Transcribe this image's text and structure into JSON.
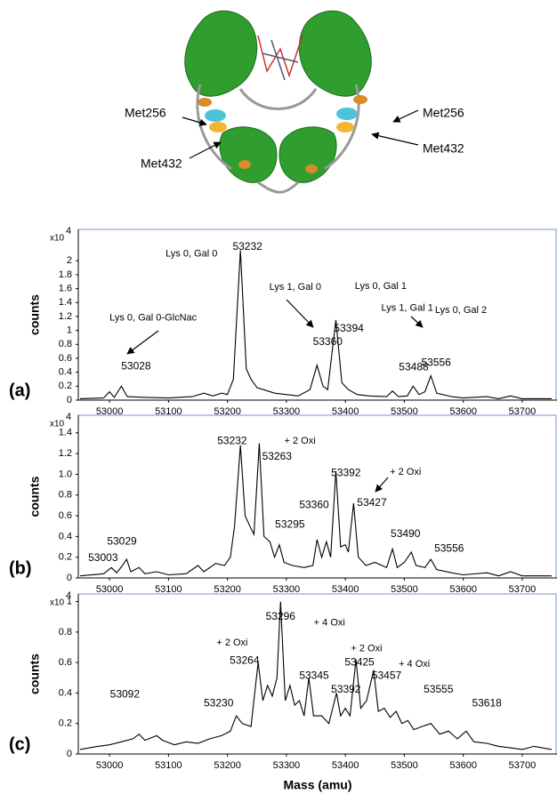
{
  "structure": {
    "labels": [
      "Met256",
      "Met432",
      "Met256",
      "Met432"
    ]
  },
  "chart_data": [
    {
      "type": "line",
      "panel": "(a)",
      "ylabel": "counts",
      "y_multiplier": "x10",
      "y_multiplier_exponent": "4",
      "color": "#000000",
      "xlim": [
        52947,
        53759
      ],
      "xticks": [
        53000,
        53100,
        53200,
        53300,
        53400,
        53500,
        53600,
        53700
      ],
      "ylim": [
        0,
        2.45
      ],
      "yticks": [
        0,
        0.2,
        0.4,
        0.6,
        0.8,
        1,
        1.2,
        1.4,
        1.6,
        1.8,
        2
      ],
      "x": [
        52950,
        52990,
        53000,
        53008,
        53020,
        53030,
        53060,
        53100,
        53140,
        53160,
        53175,
        53190,
        53200,
        53210,
        53222,
        53232,
        53240,
        53250,
        53280,
        53320,
        53340,
        53352,
        53362,
        53370,
        53384,
        53394,
        53405,
        53420,
        53440,
        53470,
        53480,
        53490,
        53505,
        53515,
        53525,
        53535,
        53545,
        53555,
        53580,
        53600,
        53640,
        53660,
        53680,
        53700,
        53750
      ],
      "values": [
        0.02,
        0.03,
        0.12,
        0.04,
        0.2,
        0.05,
        0.04,
        0.03,
        0.05,
        0.1,
        0.06,
        0.1,
        0.08,
        0.3,
        2.15,
        0.45,
        0.3,
        0.18,
        0.1,
        0.06,
        0.15,
        0.5,
        0.2,
        0.15,
        1.15,
        0.25,
        0.15,
        0.08,
        0.06,
        0.05,
        0.13,
        0.05,
        0.06,
        0.2,
        0.08,
        0.12,
        0.35,
        0.1,
        0.05,
        0.03,
        0.05,
        0.02,
        0.06,
        0.02,
        0.02
      ],
      "annotations": [
        {
          "text": "53232",
          "x": 53234,
          "y": 2.2
        },
        {
          "text": "Lys 0, Gal 0",
          "x": 53139,
          "y": 2.1
        },
        {
          "text": "Lys 1, Gal 0",
          "x": 53315,
          "y": 1.62
        },
        {
          "text": "Lys 0, Gal 1",
          "x": 53460,
          "y": 1.63
        },
        {
          "text": "53394",
          "x": 53406,
          "y": 1.02
        },
        {
          "text": "Lys 0, Gal 0-GlcNac",
          "x": 53074,
          "y": 1.18
        },
        {
          "text": "53360",
          "x": 53370,
          "y": 0.83
        },
        {
          "text": "Lys 1, Gal 1",
          "x": 53505,
          "y": 1.32
        },
        {
          "text": "Lys 0, Gal 2",
          "x": 53596,
          "y": 1.29
        },
        {
          "text": "53028",
          "x": 53045,
          "y": 0.48
        },
        {
          "text": "53488",
          "x": 53516,
          "y": 0.47
        },
        {
          "text": "53556",
          "x": 53554,
          "y": 0.53
        }
      ]
    },
    {
      "type": "line",
      "panel": "(b)",
      "ylabel": "counts",
      "y_multiplier": "x10",
      "y_multiplier_exponent": "4",
      "color": "#000000",
      "xlim": [
        52947,
        53759
      ],
      "xticks": [
        53000,
        53100,
        53200,
        53300,
        53400,
        53500,
        53600,
        53700
      ],
      "ylim": [
        0,
        1.57
      ],
      "yticks": [
        0,
        0.2,
        0.4,
        0.6,
        0.8,
        {
          "value": 1,
          "label": "1.0"
        },
        1.2,
        1.4
      ],
      "x": [
        52950,
        52990,
        53003,
        53012,
        53022,
        53029,
        53036,
        53050,
        53060,
        53080,
        53100,
        53130,
        53150,
        53160,
        53180,
        53195,
        53205,
        53212,
        53222,
        53230,
        53238,
        53245,
        53254,
        53262,
        53272,
        53280,
        53288,
        53296,
        53310,
        53330,
        53345,
        53352,
        53360,
        53368,
        53375,
        53384,
        53392,
        53400,
        53405,
        53414,
        53422,
        53435,
        53450,
        53470,
        53480,
        53488,
        53500,
        53512,
        53520,
        53535,
        53545,
        53555,
        53580,
        53600,
        53640,
        53660,
        53680,
        53700,
        53750
      ],
      "values": [
        0.02,
        0.04,
        0.1,
        0.05,
        0.12,
        0.18,
        0.06,
        0.1,
        0.04,
        0.06,
        0.03,
        0.04,
        0.12,
        0.06,
        0.14,
        0.12,
        0.2,
        0.5,
        1.28,
        0.6,
        0.5,
        0.42,
        1.3,
        0.4,
        0.35,
        0.2,
        0.32,
        0.15,
        0.12,
        0.1,
        0.12,
        0.37,
        0.2,
        0.35,
        0.2,
        1.03,
        0.3,
        0.32,
        0.25,
        0.72,
        0.2,
        0.12,
        0.15,
        0.1,
        0.28,
        0.1,
        0.15,
        0.25,
        0.12,
        0.1,
        0.18,
        0.08,
        0.05,
        0.03,
        0.05,
        0.02,
        0.06,
        0.02,
        0.02
      ],
      "annotations": [
        {
          "text": "53232",
          "x": 53208,
          "y": 1.32
        },
        {
          "text": "+ 2 Oxi",
          "x": 53323,
          "y": 1.32
        },
        {
          "text": "53263",
          "x": 53284,
          "y": 1.17
        },
        {
          "text": "53392",
          "x": 53401,
          "y": 1.01
        },
        {
          "text": "+ 2 Oxi",
          "x": 53502,
          "y": 1.02
        },
        {
          "text": "53360",
          "x": 53347,
          "y": 0.7
        },
        {
          "text": "53427",
          "x": 53445,
          "y": 0.72
        },
        {
          "text": "53295",
          "x": 53306,
          "y": 0.51
        },
        {
          "text": "53490",
          "x": 53502,
          "y": 0.42
        },
        {
          "text": "53029",
          "x": 53021,
          "y": 0.35
        },
        {
          "text": "53556",
          "x": 53576,
          "y": 0.28
        },
        {
          "text": "53003",
          "x": 52989,
          "y": 0.19
        }
      ]
    },
    {
      "type": "line",
      "panel": "(c)",
      "ylabel": "counts",
      "xlabel": "Mass (amu)",
      "y_multiplier": "x10",
      "y_multiplier_exponent": "4",
      "color": "#000000",
      "xlim": [
        52947,
        53759
      ],
      "xticks": [
        53000,
        53100,
        53200,
        53300,
        53400,
        53500,
        53600,
        53700
      ],
      "ylim": [
        0,
        1.05
      ],
      "yticks": [
        0,
        0.2,
        0.4,
        0.6,
        0.8,
        1
      ],
      "x": [
        52950,
        52980,
        53000,
        53020,
        53040,
        53050,
        53060,
        53080,
        53090,
        53110,
        53130,
        53150,
        53170,
        53190,
        53205,
        53215,
        53225,
        53240,
        53252,
        53260,
        53268,
        53276,
        53284,
        53290,
        53298,
        53306,
        53314,
        53322,
        53330,
        53338,
        53346,
        53360,
        53372,
        53385,
        53392,
        53400,
        53408,
        53418,
        53426,
        53436,
        53448,
        53456,
        53466,
        53476,
        53486,
        53496,
        53506,
        53516,
        53530,
        53545,
        53560,
        53575,
        53590,
        53605,
        53618,
        53640,
        53660,
        53680,
        53700,
        53720,
        53750
      ],
      "values": [
        0.03,
        0.05,
        0.06,
        0.08,
        0.1,
        0.13,
        0.09,
        0.12,
        0.09,
        0.06,
        0.08,
        0.07,
        0.1,
        0.12,
        0.15,
        0.25,
        0.2,
        0.18,
        0.6,
        0.35,
        0.45,
        0.38,
        0.5,
        1.0,
        0.35,
        0.45,
        0.32,
        0.35,
        0.25,
        0.5,
        0.25,
        0.25,
        0.2,
        0.4,
        0.25,
        0.3,
        0.25,
        0.62,
        0.3,
        0.35,
        0.55,
        0.28,
        0.3,
        0.24,
        0.28,
        0.2,
        0.22,
        0.16,
        0.18,
        0.2,
        0.13,
        0.15,
        0.1,
        0.15,
        0.08,
        0.07,
        0.05,
        0.04,
        0.03,
        0.05,
        0.03
      ],
      "annotations": [
        {
          "text": "53296",
          "x": 53290,
          "y": 0.9
        },
        {
          "text": "+ 4 Oxi",
          "x": 53373,
          "y": 0.86
        },
        {
          "text": "+ 2 Oxi",
          "x": 53208,
          "y": 0.73
        },
        {
          "text": "+ 2 Oxi",
          "x": 53436,
          "y": 0.69
        },
        {
          "text": "53425",
          "x": 53424,
          "y": 0.6
        },
        {
          "text": "+ 4 Oxi",
          "x": 53517,
          "y": 0.59
        },
        {
          "text": "53264",
          "x": 53229,
          "y": 0.61
        },
        {
          "text": "53345",
          "x": 53347,
          "y": 0.51
        },
        {
          "text": "53392",
          "x": 53401,
          "y": 0.42
        },
        {
          "text": "53457",
          "x": 53470,
          "y": 0.51
        },
        {
          "text": "53230",
          "x": 53185,
          "y": 0.33
        },
        {
          "text": "53092",
          "x": 53026,
          "y": 0.39
        },
        {
          "text": "53555",
          "x": 53558,
          "y": 0.42
        },
        {
          "text": "53618",
          "x": 53640,
          "y": 0.33
        }
      ]
    }
  ]
}
